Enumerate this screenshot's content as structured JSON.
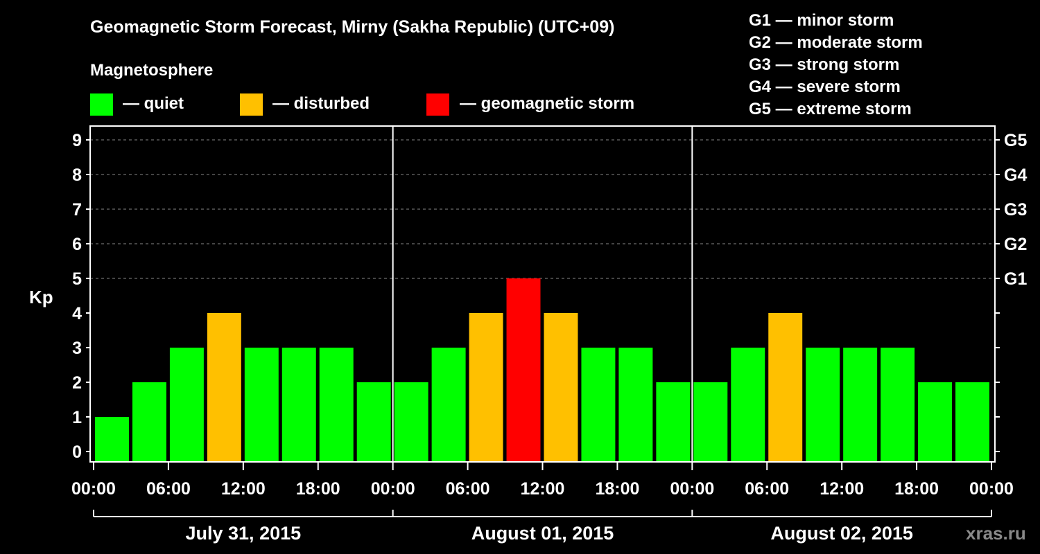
{
  "chart_data": {
    "type": "bar",
    "title": "Geomagnetic Storm Forecast, Mirny (Sakha Republic) (UTC+09)",
    "ylabel": "Kp",
    "ylim": [
      0,
      9
    ],
    "yticks": [
      "0",
      "1",
      "2",
      "3",
      "4",
      "5",
      "6",
      "7",
      "8",
      "9"
    ],
    "right_ticks": [
      {
        "kp": 5,
        "label": "G1"
      },
      {
        "kp": 6,
        "label": "G2"
      },
      {
        "kp": 7,
        "label": "G3"
      },
      {
        "kp": 8,
        "label": "G4"
      },
      {
        "kp": 9,
        "label": "G5"
      }
    ],
    "storm_scale": [
      "G1 — minor storm",
      "G2 — moderate storm",
      "G3 — strong storm",
      "G4 — severe storm",
      "G5 — extreme storm"
    ],
    "legend": {
      "title": "Magnetosphere",
      "items": [
        {
          "label": "— quiet",
          "color": "#00ff00"
        },
        {
          "label": "— disturbed",
          "color": "#ffc000"
        },
        {
          "label": "— geomagnetic storm",
          "color": "#ff0000"
        }
      ]
    },
    "xticks": [
      "00:00",
      "06:00",
      "12:00",
      "18:00",
      "00:00",
      "06:00",
      "12:00",
      "18:00",
      "00:00",
      "06:00",
      "12:00",
      "18:00",
      "00:00"
    ],
    "days": [
      "July 31, 2015",
      "August 01, 2015",
      "August 02, 2015"
    ],
    "series": [
      {
        "values": [
          1,
          2,
          3,
          4,
          3,
          3,
          3,
          2,
          2,
          3,
          4,
          5,
          4,
          3,
          3,
          2,
          2,
          3,
          4,
          3,
          3,
          3,
          2,
          2
        ]
      }
    ],
    "grid": true,
    "colors": {
      "quiet": "#00ff00",
      "disturbed": "#ffc000",
      "storm": "#ff0000",
      "background": "#000000",
      "grid": "#888888"
    }
  },
  "watermark": "xras.ru"
}
